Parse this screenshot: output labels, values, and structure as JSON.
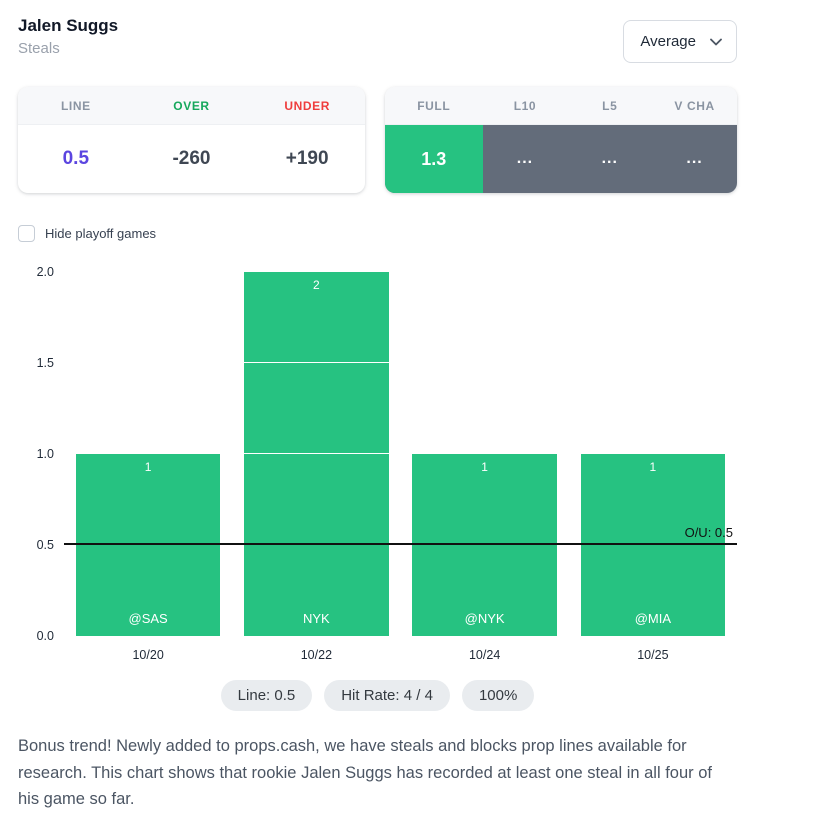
{
  "header": {
    "player_name": "Jalen Suggs",
    "stat_label": "Steals",
    "aggregate_dropdown": {
      "value": "Average"
    }
  },
  "line_card": {
    "headers": {
      "line": "LINE",
      "over": "OVER",
      "under": "UNDER"
    },
    "values": {
      "line": "0.5",
      "over": "-260",
      "under": "+190"
    }
  },
  "splits_card": {
    "headers": [
      "FULL",
      "L10",
      "L5",
      "V CHA"
    ],
    "cells": [
      {
        "label": "1.3",
        "highlight": true
      },
      {
        "label": "...",
        "highlight": false
      },
      {
        "label": "...",
        "highlight": false
      },
      {
        "label": "...",
        "highlight": false
      }
    ]
  },
  "filters": {
    "hide_playoff_label": "Hide playoff games",
    "checked": false
  },
  "chart_data": {
    "type": "bar",
    "title": "",
    "xlabel": "",
    "ylabel": "",
    "categories": [
      "10/20",
      "10/22",
      "10/24",
      "10/25"
    ],
    "values": [
      1,
      2,
      1,
      1
    ],
    "bar_value_labels": [
      "1",
      "2",
      "1",
      "1"
    ],
    "opponent_labels": [
      "@SAS",
      "NYK",
      "@NYK",
      "@MIA"
    ],
    "ylim": [
      0,
      2
    ],
    "yticks": [
      "0.0",
      "0.5",
      "1.0",
      "1.5",
      "2.0"
    ],
    "overunder_line": {
      "value": 0.5,
      "label": "O/U: 0.5"
    },
    "bar_color": "#26c281",
    "grid": "white-overlay-on-bars"
  },
  "summary_pills": [
    "Line: 0.5",
    "Hit Rate: 4 / 4",
    "100%"
  ],
  "footer_text": "Bonus trend! Newly added to props.cash, we have steals and blocks prop lines available for research. This chart shows that rookie Jalen Suggs has recorded at least one steal in all four of his game so far.",
  "colors": {
    "bar_green": "#26c281",
    "over_green": "#16a85c",
    "under_red": "#ef3d3d",
    "line_purple": "#5b45e0",
    "splits_dark": "#636c7a",
    "ou_line": "#111111"
  }
}
